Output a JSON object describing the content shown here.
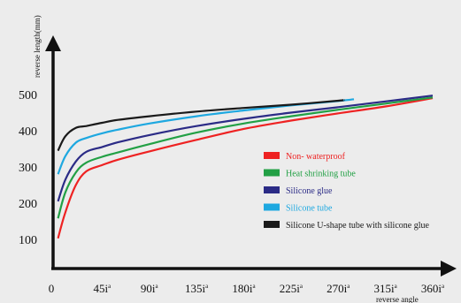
{
  "chart_data": {
    "type": "line",
    "title": "",
    "ylabel": "reverse length(mm)",
    "xlabel": "reverse angle",
    "xlim": [
      0,
      360
    ],
    "ylim": [
      0,
      500
    ],
    "x_ticks": [
      {
        "value": 0,
        "label": "0",
        "sup": ""
      },
      {
        "value": 45,
        "label": "45i",
        "sup": "a"
      },
      {
        "value": 90,
        "label": "90i",
        "sup": "a"
      },
      {
        "value": 135,
        "label": "135i",
        "sup": "a"
      },
      {
        "value": 180,
        "label": "180i",
        "sup": "a"
      },
      {
        "value": 225,
        "label": "225i",
        "sup": "a"
      },
      {
        "value": 270,
        "label": "270i",
        "sup": "a"
      },
      {
        "value": 315,
        "label": "315i",
        "sup": "a"
      },
      {
        "value": 360,
        "label": "360i",
        "sup": "a"
      }
    ],
    "y_ticks": [
      100,
      200,
      300,
      400,
      500
    ],
    "grid": false,
    "legend_position": "center-right",
    "series": [
      {
        "name": "Non- waterproof",
        "color": "#ee2222",
        "x": [
          3,
          10,
          20,
          30,
          45,
          60,
          90,
          135,
          180,
          225,
          270,
          315,
          360
        ],
        "y": [
          103,
          175,
          250,
          288,
          305,
          320,
          343,
          375,
          405,
          428,
          448,
          467,
          490
        ]
      },
      {
        "name": "Heat shrinking tube",
        "color": "#22a045",
        "x": [
          3,
          10,
          20,
          30,
          45,
          60,
          90,
          135,
          180,
          225,
          270,
          315,
          360
        ],
        "y": [
          158,
          230,
          285,
          312,
          328,
          340,
          363,
          395,
          420,
          440,
          458,
          475,
          492
        ]
      },
      {
        "name": "Silicone glue",
        "color": "#2b2b86",
        "x": [
          3,
          10,
          20,
          30,
          45,
          60,
          90,
          135,
          180,
          225,
          270,
          315,
          360
        ],
        "y": [
          205,
          265,
          315,
          342,
          355,
          368,
          388,
          413,
          433,
          450,
          465,
          481,
          497
        ]
      },
      {
        "name": "Silicone tube",
        "color": "#1ea8e0",
        "x": [
          3,
          10,
          20,
          30,
          45,
          60,
          90,
          135,
          180,
          225,
          270,
          285
        ],
        "y": [
          280,
          330,
          367,
          380,
          393,
          403,
          420,
          440,
          456,
          470,
          482,
          487
        ]
      },
      {
        "name": "Silicone U-shape tube with silicone glue",
        "color": "#1a1a1a",
        "x": [
          3,
          10,
          20,
          30,
          45,
          60,
          90,
          135,
          180,
          225,
          270,
          275
        ],
        "y": [
          345,
          385,
          408,
          413,
          422,
          430,
          440,
          453,
          463,
          472,
          483,
          485
        ]
      }
    ]
  }
}
